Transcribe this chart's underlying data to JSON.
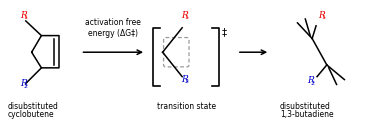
{
  "bg_color": "#ffffff",
  "r1_color": "#ee0000",
  "r2_color": "#0000cc",
  "black": "#000000",
  "gray": "#999999",
  "arrow1_text_line1": "activation free",
  "arrow1_text_line2": "energy (ΔG‡)",
  "label1_line1": "disubstituted",
  "label1_line2": "cyclobutene",
  "label2": "transition state",
  "label3_line1": "disubstituted",
  "label3_line2": "1,3-butadiene",
  "ts_superscript": "‡",
  "figsize": [
    3.78,
    1.23
  ],
  "dpi": 100
}
